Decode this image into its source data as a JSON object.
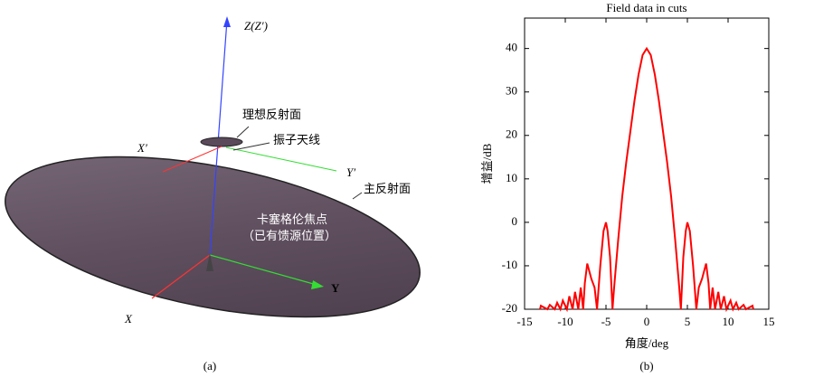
{
  "diagram": {
    "labels": {
      "z_axis": "Z(Z′)",
      "ideal_reflector": "理想反射面",
      "dipole": "振子天线",
      "x_prime": "X′",
      "y_prime": "Y′",
      "main_reflector": "主反射面",
      "focus": "卡塞格伦焦点",
      "focus_note": "（已有馈源位置）",
      "y_axis": "Y",
      "x_axis": "X"
    },
    "caption": "(a)"
  },
  "chart_data": {
    "type": "line",
    "title": "Field data in cuts",
    "x_label": "角度/deg",
    "y_label": "增益/dB",
    "color": "#ff0000",
    "x": [
      -13.1,
      -13,
      -12.2,
      -11.9,
      -11.3,
      -11,
      -10.6,
      -10.3,
      -9.8,
      -9.5,
      -9.1,
      -8.8,
      -8.4,
      -8.1,
      -7.8,
      -7.6,
      -7.3,
      -6.8,
      -6.4,
      -6.1,
      -5.7,
      -5.3,
      -5,
      -4.8,
      -4.5,
      -4.2,
      -4,
      -3.5,
      -3,
      -2.5,
      -2,
      -1.5,
      -1,
      -0.5,
      0,
      0.5,
      1,
      1.5,
      2,
      2.5,
      3,
      3.5,
      4,
      4.2,
      4.5,
      4.8,
      5,
      5.3,
      5.7,
      6.1,
      6.4,
      6.8,
      7.3,
      7.6,
      7.8,
      8.1,
      8.4,
      8.8,
      9.1,
      9.5,
      9.8,
      10.3,
      10.6,
      11,
      11.3,
      11.9,
      12.2,
      13,
      13.1
    ],
    "values": [
      -20,
      -19.2,
      -20,
      -19,
      -20,
      -18.5,
      -20,
      -18,
      -20,
      -17,
      -20,
      -16,
      -20,
      -15,
      -20,
      -14,
      -9.5,
      -13,
      -15,
      -20,
      -10,
      -2,
      0,
      -2,
      -8,
      -20,
      -15,
      -4,
      6,
      14,
      21,
      28,
      34,
      38.5,
      40,
      38.5,
      34,
      28,
      21,
      14,
      6,
      -4,
      -15,
      -20,
      -8,
      -2,
      0,
      -2,
      -10,
      -20,
      -15,
      -13,
      -9.5,
      -14,
      -20,
      -15,
      -20,
      -16,
      -20,
      -17,
      -20,
      -18,
      -20,
      -18.5,
      -20,
      -19,
      -20,
      -19.2,
      -20
    ],
    "xlim": [
      -15,
      15
    ],
    "xticks": [
      -15,
      -10,
      -5,
      0,
      5,
      10,
      15
    ],
    "ylim": [
      -20,
      47
    ],
    "yticks": [
      -20,
      -10,
      0,
      10,
      20,
      30,
      40
    ],
    "caption": "(b)"
  }
}
